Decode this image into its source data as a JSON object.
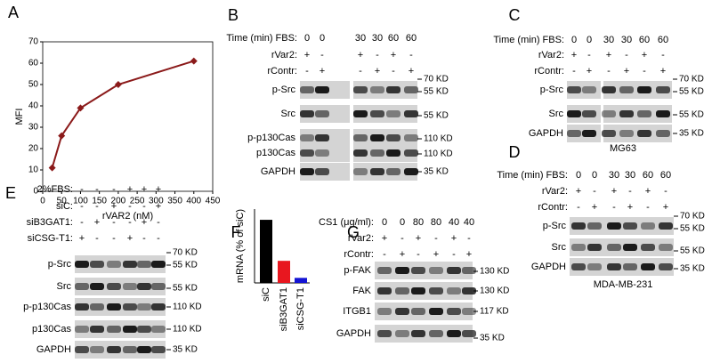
{
  "chart_data": [
    {
      "type": "line",
      "panel_label": "A",
      "xlabel": "rVAR2 (nM)",
      "ylabel": "MFI",
      "x": [
        25,
        50,
        100,
        200,
        400
      ],
      "values": [
        11,
        26,
        39,
        50,
        61
      ],
      "color": "#8b1a1a",
      "xlim": [
        0,
        450
      ],
      "ylim": [
        0,
        70
      ],
      "xticks": [
        0,
        50,
        100,
        150,
        200,
        250,
        300,
        350,
        400,
        450
      ],
      "yticks": [
        0,
        10,
        20,
        30,
        40,
        50,
        60,
        70
      ]
    },
    {
      "type": "bar",
      "panel_label": "F",
      "ylabel": "mRNA (% of siC)",
      "categories": [
        "siC",
        "siB3GAT1",
        "siCSG-T1"
      ],
      "values": [
        100,
        35,
        8
      ],
      "colors": [
        "#000000",
        "#e8171f",
        "#1414d4"
      ],
      "ylim": [
        0,
        117
      ]
    }
  ],
  "blots": {
    "B": {
      "label": "B",
      "headers": [
        {
          "label": "Time (min) FBS:",
          "cells": [
            0,
            0,
            30,
            30,
            60,
            60
          ]
        },
        {
          "label": "rVar2:",
          "cells": [
            "+",
            "-",
            "+",
            "-",
            "+",
            "-"
          ]
        },
        {
          "label": "rContr:",
          "cells": [
            "-",
            "+",
            "-",
            "+",
            "-",
            "+"
          ]
        }
      ],
      "rows": [
        "p-Src",
        "Src",
        "p-p130Cas",
        "p130Cas",
        "GAPDH"
      ],
      "markers": [
        "70 KD",
        "55 KD",
        "55 KD",
        "110 KD",
        "110 KD",
        "35 KD"
      ]
    },
    "C": {
      "label": "C",
      "headers": [
        {
          "label": "Time (min) FBS:",
          "cells": [
            0,
            0,
            30,
            30,
            60,
            60
          ]
        },
        {
          "label": "rVar2:",
          "cells": [
            "+",
            "-",
            "+",
            "-",
            "+",
            "-"
          ]
        },
        {
          "label": "rContr:",
          "cells": [
            "-",
            "+",
            "-",
            "+",
            "-",
            "+"
          ]
        }
      ],
      "rows": [
        "p-Src",
        "Src",
        "GAPDH"
      ],
      "markers": [
        "70 KD",
        "55 KD",
        "55 KD",
        "35 KD"
      ],
      "caption": "MG63"
    },
    "D": {
      "label": "D",
      "headers": [
        {
          "label": "Time (min) FBS:",
          "cells": [
            0,
            0,
            30,
            30,
            60,
            60
          ]
        },
        {
          "label": "rVar2:",
          "cells": [
            "+",
            "-",
            "+",
            "-",
            "+",
            "-"
          ]
        },
        {
          "label": "rContr:",
          "cells": [
            "-",
            "+",
            "-",
            "+",
            "-",
            "+"
          ]
        }
      ],
      "rows": [
        "p-Src",
        "Src",
        "GAPDH"
      ],
      "markers": [
        "70 KD",
        "55 KD",
        "55 KD",
        "35 KD"
      ],
      "caption": "MDA-MB-231"
    },
    "E": {
      "label": "E",
      "headers": [
        {
          "label": "2%FBS:",
          "cells": [
            "-",
            "-",
            "-",
            "+",
            "+",
            "+"
          ]
        },
        {
          "label": "siC:",
          "cells": [
            "-",
            "-",
            "+",
            "-",
            "-",
            "+"
          ]
        },
        {
          "label": "siB3GAT1:",
          "cells": [
            "-",
            "+",
            "-",
            "-",
            "+",
            "-"
          ]
        },
        {
          "label": "siCSG-T1:",
          "cells": [
            "+",
            "-",
            "-",
            "+",
            "-",
            "-"
          ]
        }
      ],
      "rows": [
        "p-Src",
        "Src",
        "p-p130Cas",
        "p130Cas",
        "GAPDH"
      ],
      "markers": [
        "70 KD",
        "55 KD",
        "55 KD",
        "110 KD",
        "110 KD",
        "35 KD"
      ]
    },
    "G": {
      "label": "G",
      "headers": [
        {
          "label": "CS1 (μg/ml):",
          "cells": [
            0,
            0,
            80,
            80,
            40,
            40
          ]
        },
        {
          "label": "rVar2:",
          "cells": [
            "+",
            "-",
            "+",
            "-",
            "+",
            "-"
          ]
        },
        {
          "label": "rContr:",
          "cells": [
            "-",
            "+",
            "-",
            "+",
            "-",
            "+"
          ]
        }
      ],
      "rows": [
        "p-FAK",
        "FAK",
        "ITGB1",
        "GAPDH"
      ],
      "markers": [
        "130 KD",
        "130 KD",
        "117 KD",
        "35 KD"
      ]
    }
  }
}
